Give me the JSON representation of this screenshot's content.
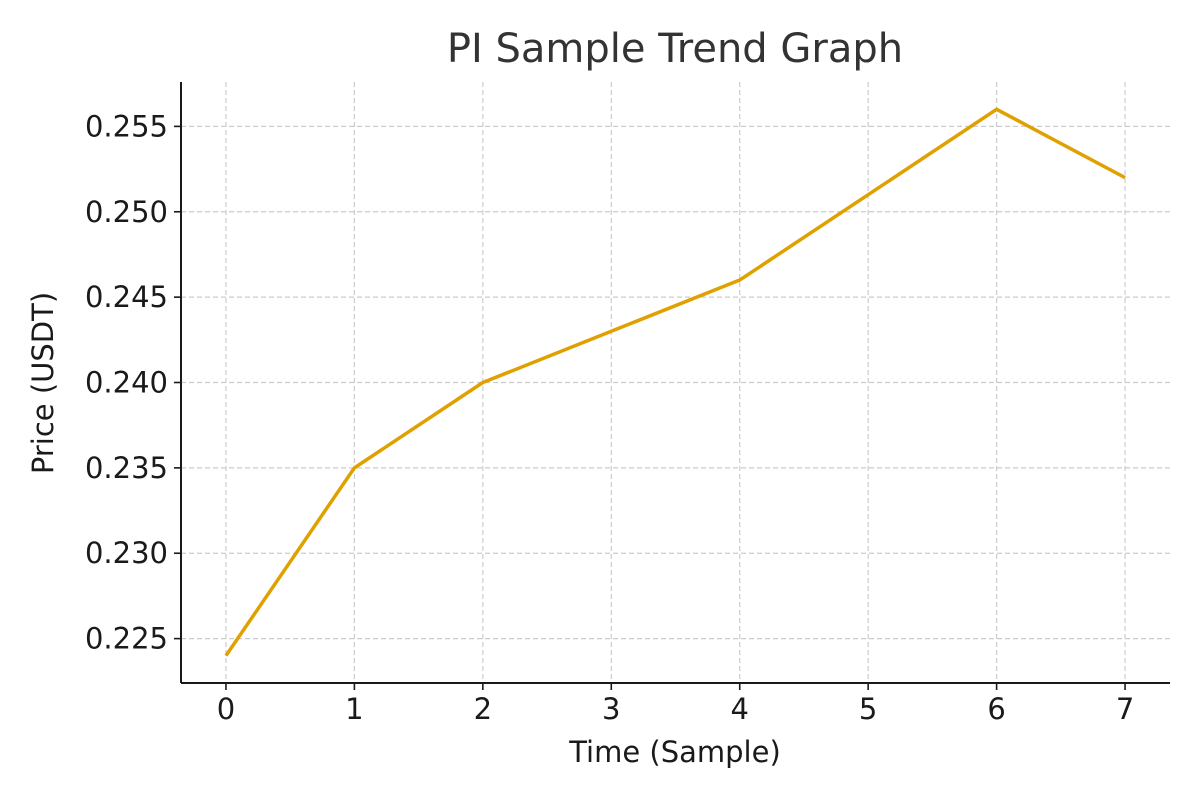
{
  "chart_data": {
    "type": "line",
    "title": "PI Sample Trend Graph",
    "xlabel": "Time (Sample)",
    "ylabel": "Price (USDT)",
    "x": [
      0,
      1,
      2,
      3,
      4,
      5,
      6,
      7
    ],
    "series": [
      {
        "values": [
          0.224,
          0.235,
          0.24,
          0.243,
          0.246,
          0.251,
          0.256,
          0.252
        ],
        "color": "#e0a000"
      }
    ],
    "xlim": [
      -0.35,
      7.35
    ],
    "ylim": [
      0.2224,
      0.2576
    ],
    "xticks": [
      0,
      1,
      2,
      3,
      4,
      5,
      6,
      7
    ],
    "xtick_labels": [
      "0",
      "1",
      "2",
      "3",
      "4",
      "5",
      "6",
      "7"
    ],
    "yticks": [
      0.225,
      0.23,
      0.235,
      0.24,
      0.245,
      0.25,
      0.255
    ],
    "ytick_labels": [
      "0.225",
      "0.230",
      "0.235",
      "0.240",
      "0.245",
      "0.250",
      "0.255"
    ],
    "grid": true,
    "legend": "none"
  }
}
